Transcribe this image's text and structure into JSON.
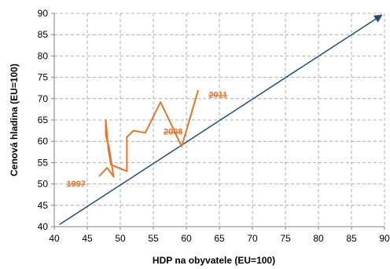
{
  "chart_data": {
    "type": "line",
    "title": "",
    "xlabel": "HDP na obyvatele  (EU=100)",
    "ylabel": "Cenová hladina (EU=100)",
    "xlim": [
      40,
      90
    ],
    "ylim": [
      40,
      90
    ],
    "x_ticks": [
      40,
      45,
      50,
      55,
      60,
      65,
      70,
      75,
      80,
      85,
      90
    ],
    "y_ticks": [
      40,
      45,
      50,
      55,
      60,
      65,
      70,
      75,
      80,
      85,
      90
    ],
    "grid": "dashed",
    "colors": {
      "series": "#e8742a",
      "reference_line": "#1f4e79",
      "annotation": "#e8742a"
    },
    "series": [
      {
        "points": [
          [
            46.8,
            51.8
          ],
          [
            48.0,
            53.8
          ],
          [
            49.0,
            51.7
          ],
          [
            48.3,
            58.5
          ],
          [
            47.8,
            61.5
          ],
          [
            47.8,
            65.0
          ],
          [
            48.2,
            58.0
          ],
          [
            48.6,
            54.5
          ],
          [
            51.0,
            53.0
          ],
          [
            51.0,
            61.0
          ],
          [
            52.0,
            62.5
          ],
          [
            53.8,
            62.0
          ],
          [
            56.1,
            69.2
          ],
          [
            59.3,
            58.8
          ],
          [
            61.8,
            72.0
          ]
        ]
      }
    ],
    "reference_line": {
      "from": [
        40.8,
        40.5
      ],
      "to": [
        89.5,
        89.5
      ]
    },
    "annotations": [
      {
        "text": "1997",
        "x": 43.3,
        "y": 50.1
      },
      {
        "text": "2008",
        "x": 58.0,
        "y": 62.3
      },
      {
        "text": "2011",
        "x": 64.8,
        "y": 71.0
      }
    ]
  }
}
